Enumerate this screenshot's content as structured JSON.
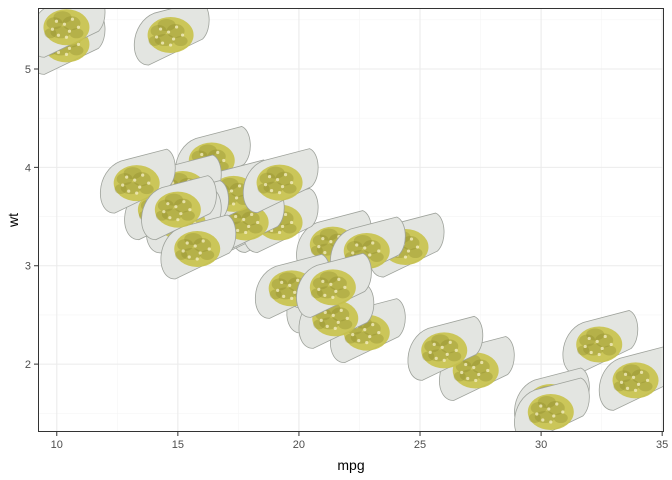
{
  "chart_data": {
    "type": "scatter",
    "title": "",
    "xlabel": "mpg",
    "ylabel": "wt",
    "xlim": [
      9.225,
      35.075
    ],
    "ylim": [
      1.31,
      5.62
    ],
    "x_ticks": [
      10,
      15,
      20,
      25,
      30,
      35
    ],
    "y_ticks": [
      2,
      3,
      4,
      5
    ],
    "x_tick_labels": [
      "10",
      "15",
      "20",
      "25",
      "30",
      "35"
    ],
    "y_tick_labels": [
      "2",
      "3",
      "4",
      "5"
    ],
    "grid": true,
    "legend": "none",
    "marker": "image",
    "marker_icon": "food-dish-image",
    "colors": {
      "background": "#ffffff",
      "panel_border": "#333333",
      "grid_major": "#ebebeb",
      "grid_minor": "#f5f5f5",
      "dish": "#e3e5e1",
      "dish_edge": "#9ea29b",
      "food": "#c8c24a",
      "food_dark": "#8c8a2c"
    },
    "x": [
      21.0,
      21.0,
      22.8,
      21.4,
      18.7,
      18.1,
      14.3,
      24.4,
      22.8,
      19.2,
      17.8,
      16.4,
      17.3,
      15.2,
      10.4,
      10.4,
      14.7,
      32.4,
      30.4,
      33.9,
      21.5,
      15.5,
      15.2,
      13.3,
      19.2,
      27.3,
      26.0,
      30.4,
      15.8,
      19.7,
      15.0,
      21.4
    ],
    "y": [
      2.62,
      2.875,
      2.32,
      3.215,
      3.44,
      3.46,
      3.57,
      3.19,
      3.15,
      3.44,
      3.44,
      4.07,
      3.73,
      3.78,
      5.25,
      5.424,
      5.345,
      2.2,
      1.615,
      1.835,
      2.465,
      3.52,
      3.435,
      3.84,
      3.845,
      1.935,
      2.14,
      1.513,
      3.17,
      2.77,
      3.57,
      2.78
    ]
  }
}
